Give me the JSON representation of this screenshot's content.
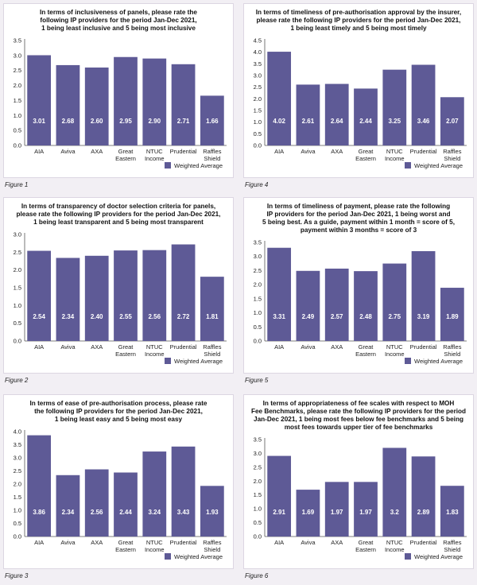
{
  "legend_label": "Weighted Average",
  "colors": {
    "bar": "#5e5a96",
    "label": "#ffffff",
    "axis": "#555555"
  },
  "chart_data": [
    {
      "type": "bar",
      "figure_label": "Figure 1",
      "title_lines": [
        "In terms of inclusiveness of panels, please rate the",
        "following IP providers for the period Jan-Dec 2021,",
        "1 being least inclusive and 5 being most inclusive"
      ],
      "categories": [
        "AIA",
        "Aviva",
        "AXA",
        "Great Eastern",
        "NTUC Income",
        "Prudential",
        "Raffles Shield"
      ],
      "values": [
        3.01,
        2.68,
        2.6,
        2.95,
        2.9,
        2.71,
        1.66
      ],
      "value_labels": [
        "3.01",
        "2.68",
        "2.60",
        "2.95",
        "2.90",
        "2.71",
        "1.66"
      ],
      "ylim": [
        0,
        3.5
      ],
      "yticks": [
        "0.0",
        "0.5",
        "1.0",
        "1.5",
        "2.0",
        "2.5",
        "3.0",
        "3.5"
      ],
      "legend": "Weighted Average"
    },
    {
      "type": "bar",
      "figure_label": "Figure 4",
      "title_lines": [
        "In terms of timeliness of pre-authorisation approval by the insurer,",
        "please rate the following IP providers for the period Jan-Dec 2021,",
        "1 being least timely and 5 being most timely"
      ],
      "categories": [
        "AIA",
        "Aviva",
        "AXA",
        "Great Eastern",
        "NTUC Income",
        "Prudential",
        "Raffles Shield"
      ],
      "values": [
        4.02,
        2.61,
        2.64,
        2.44,
        3.25,
        3.46,
        2.07
      ],
      "value_labels": [
        "4.02",
        "2.61",
        "2.64",
        "2.44",
        "3.25",
        "3.46",
        "2.07"
      ],
      "ylim": [
        0,
        4.5
      ],
      "yticks": [
        "0.0",
        "0.5",
        "1.0",
        "1.5",
        "2.0",
        "2.5",
        "3.0",
        "3.5",
        "4.0",
        "4.5"
      ],
      "legend": "Weighted Average"
    },
    {
      "type": "bar",
      "figure_label": "Figure 2",
      "title_lines": [
        "In terms of transparency of doctor selection criteria for panels,",
        "please rate the following IP providers for the period Jan-Dec 2021,",
        "1 being least transparent and 5 being most transparent"
      ],
      "categories": [
        "AIA",
        "Aviva",
        "AXA",
        "Great Eastern",
        "NTUC Income",
        "Prudential",
        "Raffles Shield"
      ],
      "values": [
        2.54,
        2.34,
        2.4,
        2.55,
        2.56,
        2.72,
        1.81
      ],
      "value_labels": [
        "2.54",
        "2.34",
        "2.40",
        "2.55",
        "2.56",
        "2.72",
        "1.81"
      ],
      "ylim": [
        0,
        3.0
      ],
      "yticks": [
        "0.0",
        "0.5",
        "1.0",
        "1.5",
        "2.0",
        "2.5",
        "3.0"
      ],
      "legend": "Weighted Average"
    },
    {
      "type": "bar",
      "figure_label": "Figure 5",
      "title_lines": [
        "In terms of timeliness of payment, please rate the following",
        "IP providers for the period Jan-Dec 2021, 1 being worst and",
        "5 being best. As a guide, payment within 1 month = score of 5,",
        "payment within 3 months = score of 3"
      ],
      "categories": [
        "AIA",
        "Aviva",
        "AXA",
        "Great Eastern",
        "NTUC Income",
        "Prudential",
        "Raffles Shield"
      ],
      "values": [
        3.31,
        2.49,
        2.57,
        2.48,
        2.75,
        3.19,
        1.89
      ],
      "value_labels": [
        "3.31",
        "2.49",
        "2.57",
        "2.48",
        "2.75",
        "3.19",
        "1.89"
      ],
      "ylim": [
        0,
        3.5
      ],
      "yticks": [
        "0.0",
        "0.5",
        "1.0",
        "1.5",
        "2.0",
        "2.5",
        "3.0",
        "3.5"
      ],
      "legend": "Weighted Average"
    },
    {
      "type": "bar",
      "figure_label": "Figure 3",
      "title_lines": [
        "In terms of ease of pre-authorisation process, please rate",
        "the following IP providers for the period Jan-Dec 2021,",
        "1 being least easy and 5 being most easy"
      ],
      "categories": [
        "AIA",
        "Aviva",
        "AXA",
        "Great Eastern",
        "NTUC Income",
        "Prudential",
        "Raffles Shield"
      ],
      "values": [
        3.86,
        2.34,
        2.56,
        2.44,
        3.24,
        3.43,
        1.93
      ],
      "value_labels": [
        "3.86",
        "2.34",
        "2.56",
        "2.44",
        "3.24",
        "3.43",
        "1.93"
      ],
      "ylim": [
        0,
        4.0
      ],
      "yticks": [
        "0.0",
        "0.5",
        "1.0",
        "1.5",
        "2.0",
        "2.5",
        "3.0",
        "3.5",
        "4.0"
      ],
      "legend": "Weighted Average"
    },
    {
      "type": "bar",
      "figure_label": "Figure 6",
      "title_lines": [
        "In terms of appropriateness of fee scales with respect to MOH",
        "Fee Benchmarks, please rate the following IP providers for the period",
        "Jan-Dec 2021, 1 being most fees below fee benchmarks and 5 being",
        "most fees towards upper tier of fee benchmarks"
      ],
      "categories": [
        "AIA",
        "Aviva",
        "AXA",
        "Great Eastern",
        "NTUC Income",
        "Prudential",
        "Raffles Shield"
      ],
      "values": [
        2.91,
        1.69,
        1.97,
        1.97,
        3.2,
        2.89,
        1.83
      ],
      "value_labels": [
        "2.91",
        "1.69",
        "1.97",
        "1.97",
        "3.2",
        "2.89",
        "1.83"
      ],
      "ylim": [
        0,
        3.5
      ],
      "yticks": [
        "0.0",
        "0.5",
        "1.0",
        "1.5",
        "2.0",
        "2.5",
        "3.0",
        "3.5"
      ],
      "legend": "Weighted Average"
    }
  ]
}
